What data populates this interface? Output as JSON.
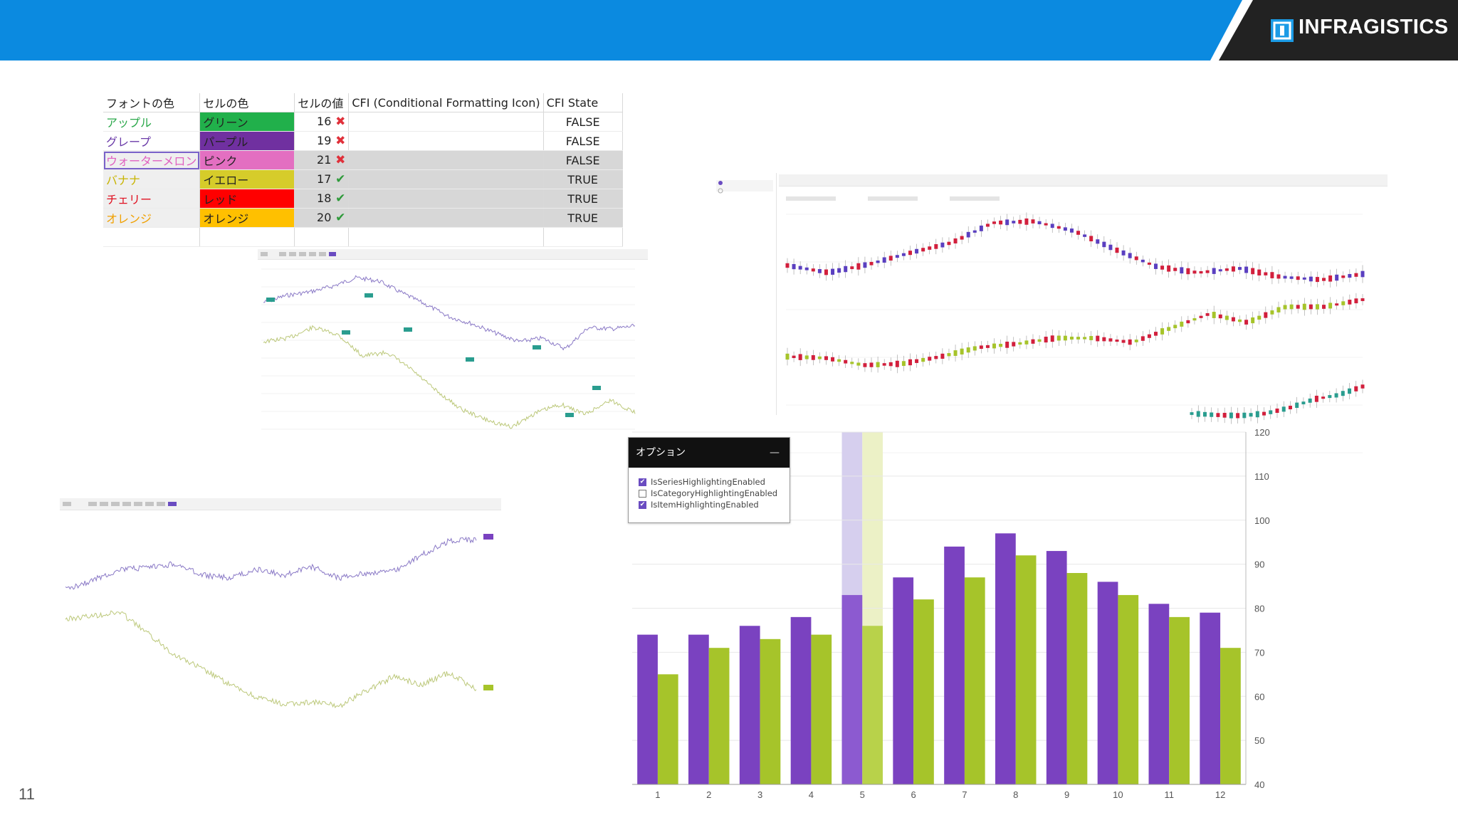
{
  "brand": {
    "logo_text": "INFRAGISTICS",
    "header_color": "#0b8ae0",
    "logo_bg": "#222222"
  },
  "page_number": "11",
  "cf_table": {
    "headers": [
      "フォントの色",
      "セルの色",
      "セルの値",
      "CFI (Conditional Formatting Icon)",
      "CFI State"
    ],
    "rows": [
      {
        "font_color_name": "アップル",
        "font_color": "#2aa84a",
        "cell_color_name": "グリーン",
        "cell_color": "#21b04b",
        "value": "16",
        "icon": "cross-icon",
        "state": "FALSE"
      },
      {
        "font_color_name": "グレープ",
        "font_color": "#6a3aa8",
        "cell_color_name": "パープル",
        "cell_color": "#7030a0",
        "value": "19",
        "icon": "cross-icon",
        "state": "FALSE"
      },
      {
        "font_color_name": "ウォーターメロン",
        "font_color": "#e060c0",
        "cell_color_name": "ピンク",
        "cell_color": "#e36fc1",
        "value": "21",
        "icon": "cross-icon",
        "state": "FALSE"
      },
      {
        "font_color_name": "バナナ",
        "font_color": "#c8b400",
        "cell_color_name": "イエロー",
        "cell_color": "#d6cc2a",
        "value": "17",
        "icon": "check-icon",
        "state": "TRUE"
      },
      {
        "font_color_name": "チェリー",
        "font_color": "#e01020",
        "cell_color_name": "レッド",
        "cell_color": "#ff0000",
        "value": "18",
        "icon": "check-icon",
        "state": "TRUE"
      },
      {
        "font_color_name": "オレンジ",
        "font_color": "#f0a000",
        "cell_color_name": "オレンジ",
        "cell_color": "#ffc000",
        "value": "20",
        "icon": "check-icon",
        "state": "TRUE"
      }
    ]
  },
  "options_panel": {
    "title": "オプション",
    "minimize_label": "—",
    "items": [
      {
        "label": "IsSeriesHighlightingEnabled",
        "checked": true
      },
      {
        "label": "IsCategoryHighlightingEnabled",
        "checked": false
      },
      {
        "label": "IsItemHighlightingEnabled",
        "checked": true
      }
    ]
  },
  "chart_data": {
    "type": "bar",
    "categories": [
      "1",
      "2",
      "3",
      "4",
      "5",
      "6",
      "7",
      "8",
      "9",
      "10",
      "11",
      "12"
    ],
    "series": [
      {
        "color": "#7a42c0",
        "values": [
          74,
          74,
          76,
          78,
          83,
          87,
          94,
          97,
          93,
          86,
          81,
          79
        ]
      },
      {
        "color": "#a6c42a",
        "values": [
          65,
          71,
          73,
          74,
          76,
          82,
          87,
          92,
          88,
          83,
          78,
          71
        ]
      }
    ],
    "highlighted_category": "5",
    "ylim": [
      40,
      120
    ],
    "yticks": [
      "40",
      "50",
      "60",
      "70",
      "80",
      "90",
      "100",
      "110",
      "120"
    ],
    "ytick_values": [
      40,
      50,
      60,
      70,
      80,
      90,
      100,
      110,
      120
    ],
    "grid": true,
    "y_axis_side": "right"
  }
}
